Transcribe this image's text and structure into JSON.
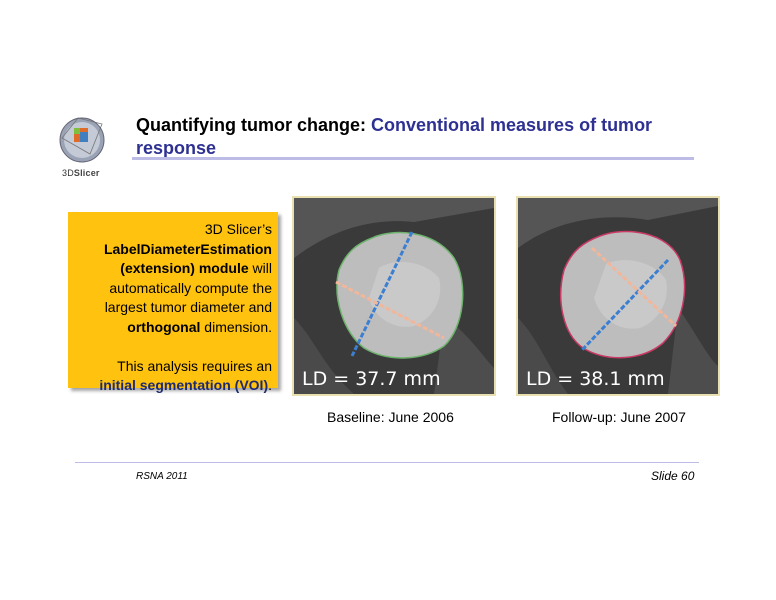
{
  "logo": {
    "icon": "3dslicer-logo-icon",
    "text_prefix": "3D",
    "text_brand": "Slicer"
  },
  "title": {
    "main": "Quantifying tumor change: ",
    "accent": "Conventional measures of tumor response",
    "accent_color": "#2e3192"
  },
  "callout": {
    "background": "#ffc20e",
    "line1": "3D Slicer’s",
    "module_name": "LabelDiameterEstimation (extension) module",
    "line2_rest": " will automatically compute the largest tumor diameter and ",
    "orthogonal": "orthogonal",
    "line3": " dimension.",
    "line4": "This analysis requires an",
    "seg": "initial segmentation (VOI)",
    "end": "."
  },
  "panels": [
    {
      "measurement": "LD = 37.7 mm",
      "caption": "Baseline: June 2006"
    },
    {
      "measurement": "LD = 38.1 mm",
      "caption": "Follow-up: June 2007"
    }
  ],
  "footer": {
    "left": "RSNA 2011",
    "right": "Slide 60"
  }
}
